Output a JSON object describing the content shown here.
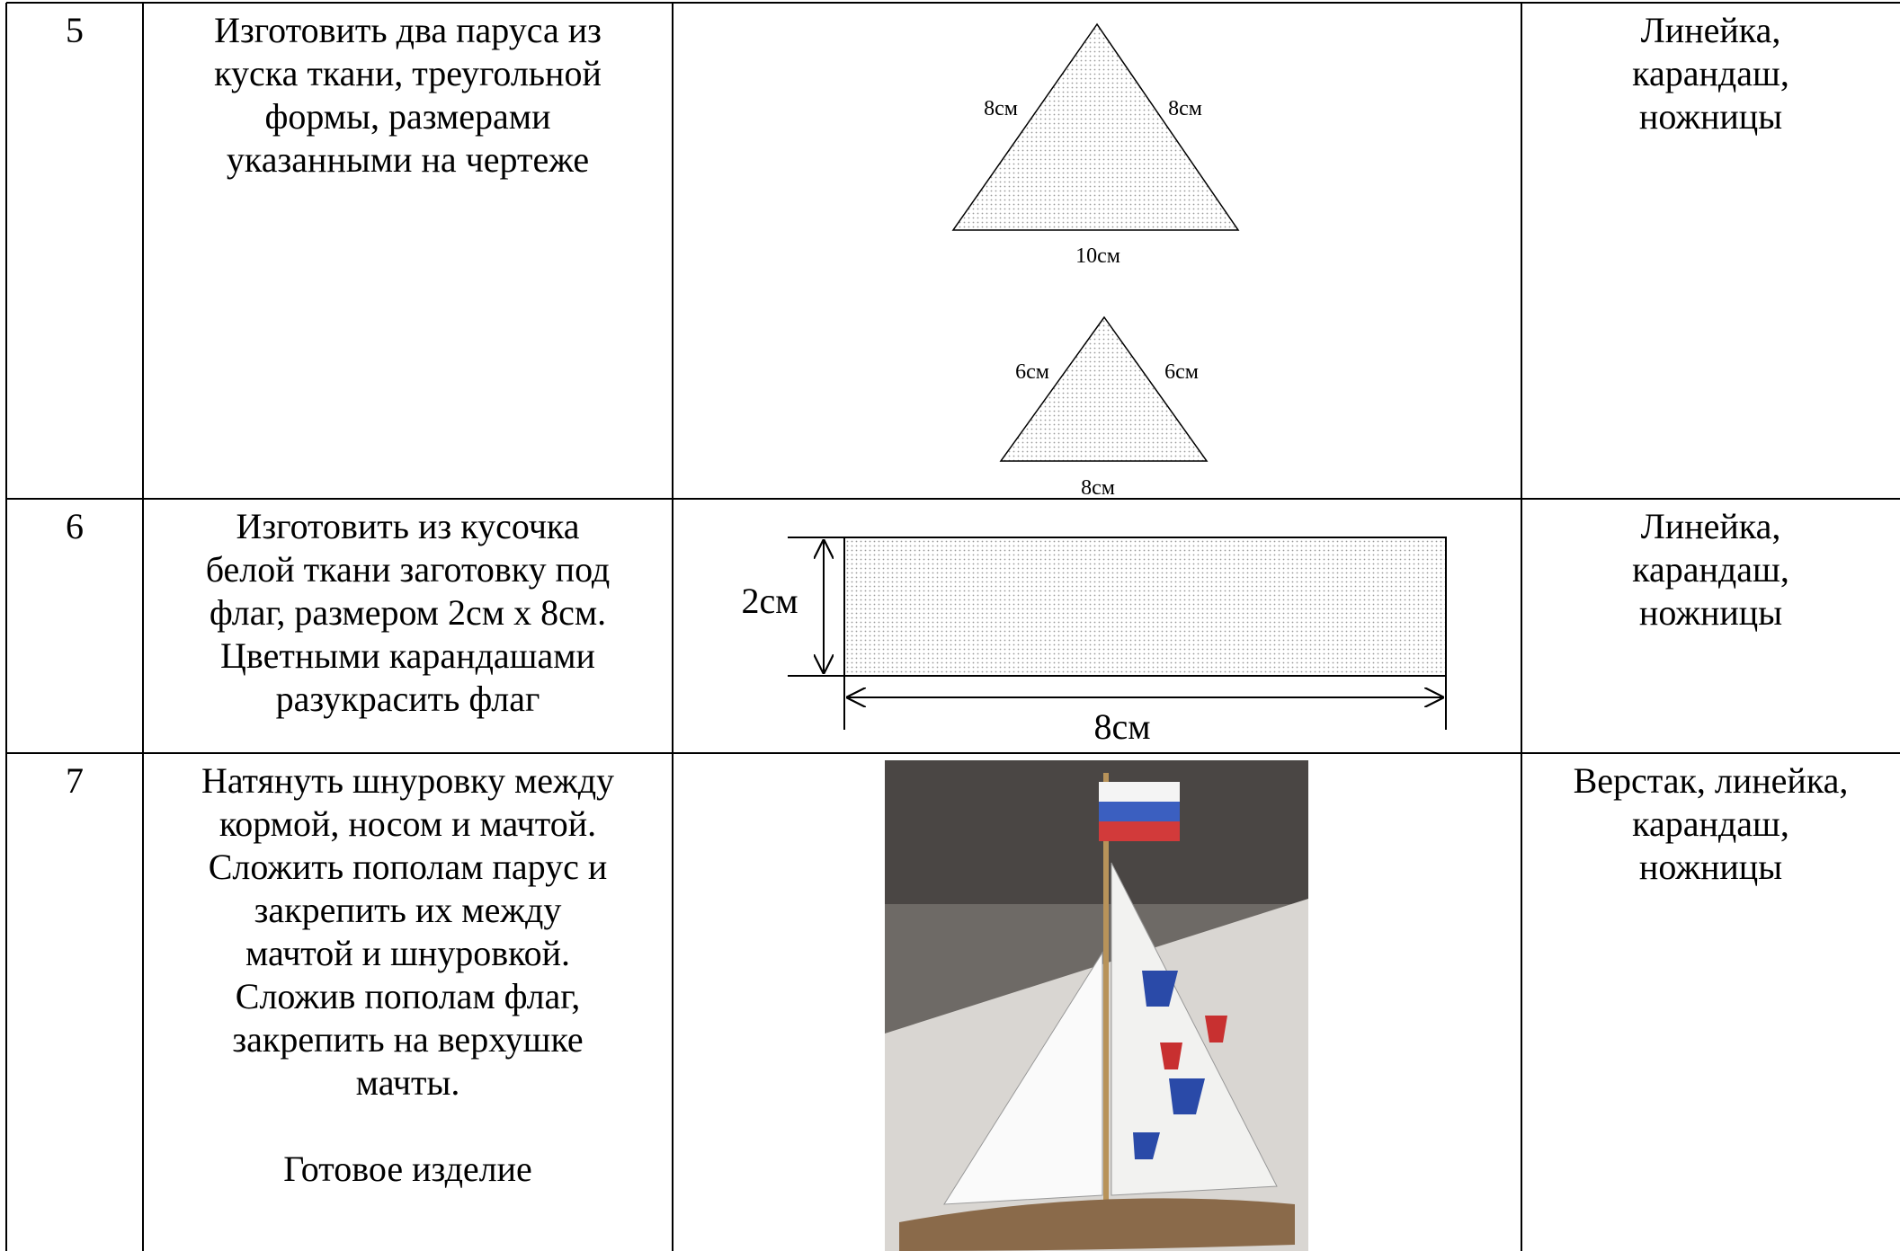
{
  "table": {
    "rows": [
      {
        "number": "5",
        "task": [
          "Изготовить два паруса из",
          "куска ткани, треугольной",
          "формы, размерами",
          "указанными на чертеже"
        ],
        "diagram": {
          "large": {
            "left_side": "8см",
            "right_side": "8см",
            "base": "10см"
          },
          "small": {
            "left_side": "6см",
            "right_side": "6см",
            "base": "8см"
          }
        },
        "tools": [
          "Линейка,",
          "карандаш,",
          "ножницы"
        ]
      },
      {
        "number": "6",
        "task": [
          "Изготовить из кусочка",
          "белой ткани заготовку под",
          "флаг, размером 2см х 8см.",
          "Цветными карандашами",
          "разукрасить флаг"
        ],
        "diagram": {
          "height": "2см",
          "width": "8см"
        },
        "tools": [
          "Линейка,",
          "карандаш,",
          "ножницы"
        ]
      },
      {
        "number": "7",
        "task": [
          "Натянуть шнуровку между",
          "кормой, носом и мачтой.",
          "Сложить пополам парус и",
          "закрепить их между",
          "мачтой и шнуровкой.",
          "Сложив пополам флаг,",
          "закрепить на верхушке",
          "мачты."
        ],
        "caption": "Готовое изделие",
        "tools": [
          "Верстак, линейка,",
          "карандаш,",
          "ножницы"
        ]
      }
    ]
  }
}
